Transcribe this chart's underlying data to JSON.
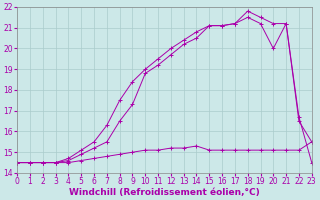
{
  "xlabel": "Windchill (Refroidissement éolien,°C)",
  "background_color": "#cce8e8",
  "grid_color": "#aacccc",
  "line_color": "#aa00aa",
  "xlim": [
    0,
    23
  ],
  "ylim": [
    14,
    22
  ],
  "xticks": [
    0,
    1,
    2,
    3,
    4,
    5,
    6,
    7,
    8,
    9,
    10,
    11,
    12,
    13,
    14,
    15,
    16,
    17,
    18,
    19,
    20,
    21,
    22,
    23
  ],
  "yticks": [
    14,
    15,
    16,
    17,
    18,
    19,
    20,
    21,
    22
  ],
  "series1_x": [
    0,
    1,
    2,
    3,
    4,
    5,
    6,
    7,
    8,
    9,
    10,
    11,
    12,
    13,
    14,
    15,
    16,
    17,
    18,
    19,
    20,
    21,
    22,
    23
  ],
  "series1_y": [
    14.5,
    14.5,
    14.5,
    14.5,
    14.5,
    14.6,
    14.7,
    14.8,
    14.9,
    15.0,
    15.1,
    15.1,
    15.2,
    15.2,
    15.3,
    15.1,
    15.1,
    15.1,
    15.1,
    15.1,
    15.1,
    15.1,
    15.1,
    15.5
  ],
  "series2_x": [
    0,
    1,
    2,
    3,
    4,
    5,
    6,
    7,
    8,
    9,
    10,
    11,
    12,
    13,
    14,
    15,
    16,
    17,
    18,
    19,
    20,
    21,
    22,
    23
  ],
  "series2_y": [
    14.5,
    14.5,
    14.5,
    14.5,
    14.6,
    14.9,
    15.2,
    15.5,
    16.5,
    17.3,
    18.8,
    19.2,
    19.7,
    20.2,
    20.5,
    21.1,
    21.1,
    21.2,
    21.5,
    21.2,
    20.0,
    21.2,
    16.5,
    15.5
  ],
  "series3_x": [
    0,
    1,
    2,
    3,
    4,
    5,
    6,
    7,
    8,
    9,
    10,
    11,
    12,
    13,
    14,
    15,
    16,
    17,
    18,
    19,
    20,
    21,
    22,
    23
  ],
  "series3_y": [
    14.5,
    14.5,
    14.5,
    14.5,
    14.7,
    15.1,
    15.5,
    16.3,
    17.5,
    18.4,
    19.0,
    19.5,
    20.0,
    20.4,
    20.8,
    21.1,
    21.1,
    21.2,
    21.8,
    21.5,
    21.2,
    21.2,
    16.7,
    14.5
  ],
  "tick_fontsize": 5.5,
  "xlabel_fontsize": 6.5,
  "figsize": [
    3.2,
    2.0
  ],
  "dpi": 100
}
